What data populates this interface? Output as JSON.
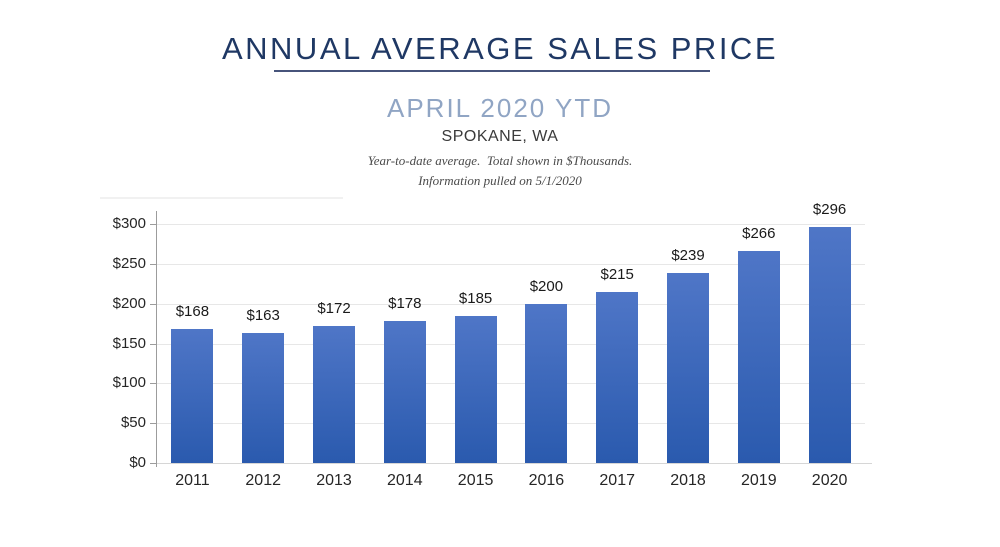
{
  "header": {
    "title": "ANNUAL AVERAGE SALES PRICE",
    "subtitle": "APRIL 2020 YTD",
    "location": "SPOKANE, WA",
    "note_line1": "Year-to-date average.  Total shown in $Thousands.",
    "note_line2": "Information pulled on 5/1/2020"
  },
  "colors": {
    "title_navy": "#1F3864",
    "subtitle_blue_gray": "#90A5C4",
    "underline": "#47547B",
    "bar_gradient_top": "#4F76C7",
    "bar_gradient_bottom": "#2A5AAE",
    "gridline": "#E7E7E7",
    "axis_line": "#9C9C9C",
    "baseline": "#D6D6D6",
    "chart_text": "#262626"
  },
  "chart_data": {
    "type": "bar",
    "title": "ANNUAL AVERAGE SALES PRICE",
    "subtitle": "APRIL 2020 YTD",
    "categories": [
      "2011",
      "2012",
      "2013",
      "2014",
      "2015",
      "2016",
      "2017",
      "2018",
      "2019",
      "2020"
    ],
    "values": [
      168,
      163,
      172,
      178,
      185,
      200,
      215,
      239,
      266,
      296
    ],
    "data_labels": [
      "$168",
      "$163",
      "$172",
      "$178",
      "$185",
      "$200",
      "$215",
      "$239",
      "$266",
      "$296"
    ],
    "y_ticks": [
      0,
      50,
      100,
      150,
      200,
      250,
      300
    ],
    "y_tick_labels": [
      "$0",
      "$50",
      "$100",
      "$150",
      "$200",
      "$250",
      "$300"
    ],
    "ylim": [
      0,
      300
    ],
    "xlabel": "",
    "ylabel": "",
    "grid": "horizontal-major",
    "legend": "none",
    "units": "$Thousands"
  }
}
